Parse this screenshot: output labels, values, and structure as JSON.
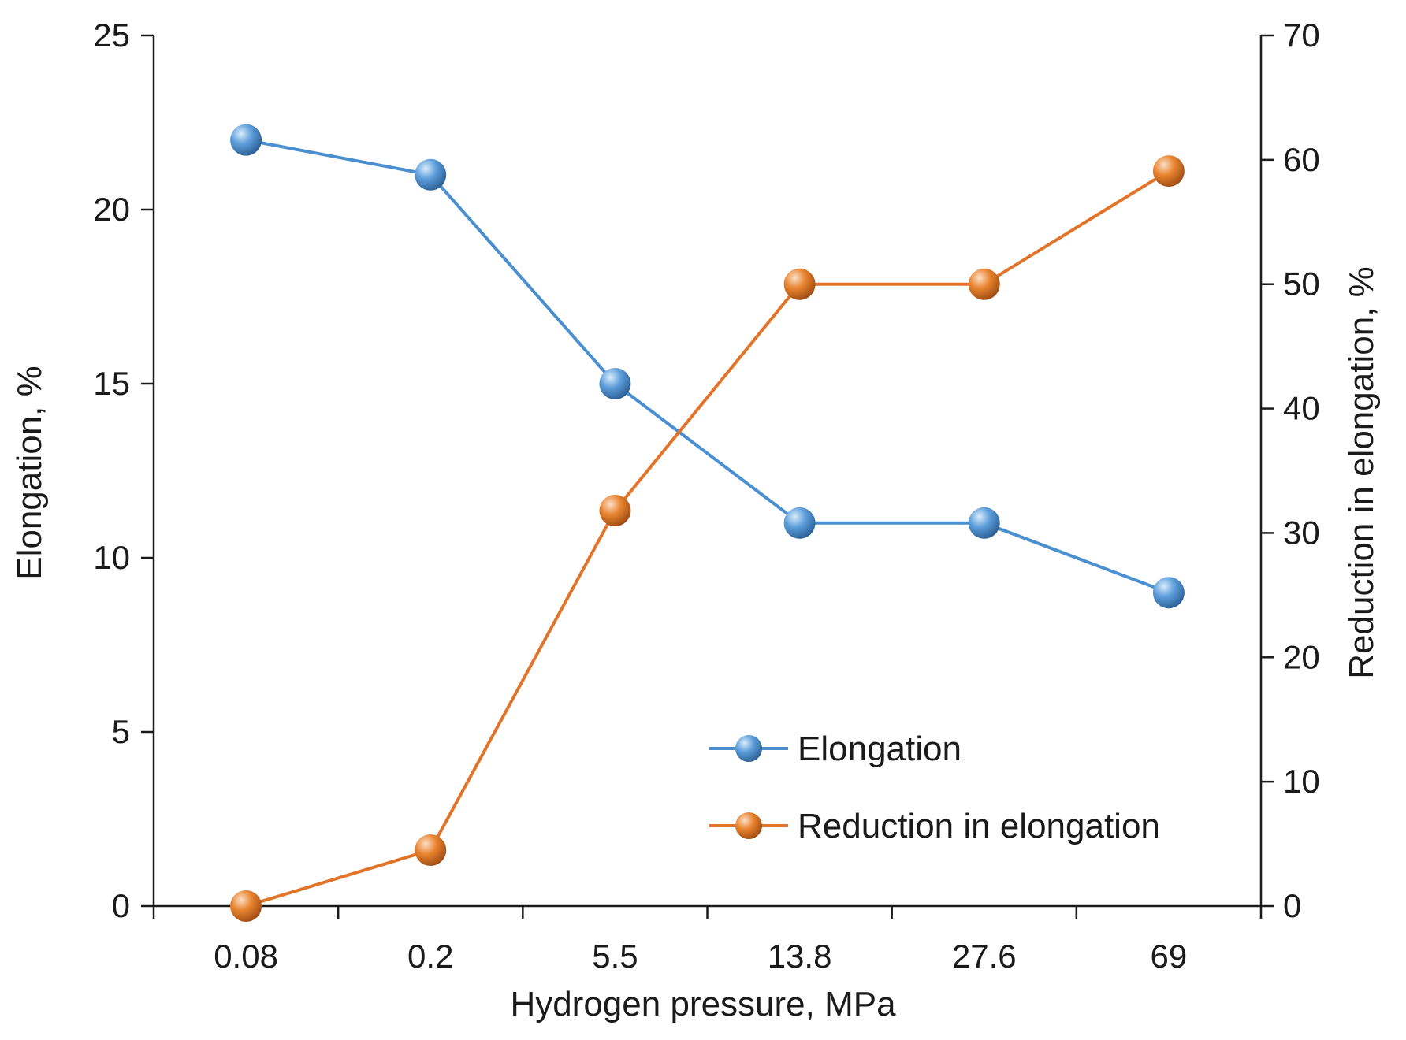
{
  "chart_data": {
    "type": "line",
    "title": "",
    "xlabel": "Hydrogen pressure, MPa",
    "ylabel": "Elongation, %",
    "y2label": "Reduction in elongation, %",
    "categories": [
      "0.08",
      "0.2",
      "5.5",
      "13.8",
      "27.6",
      "69"
    ],
    "ylim": [
      0,
      25
    ],
    "y2lim": [
      0,
      70
    ],
    "yticks": [
      0,
      5,
      10,
      15,
      20,
      25
    ],
    "y2ticks": [
      0,
      10,
      20,
      30,
      40,
      50,
      60,
      70
    ],
    "grid": false,
    "legend_position": "bottom-right inside plot",
    "series": [
      {
        "name": "Elongation",
        "axis": "left",
        "color": "#4a8fd0",
        "values": [
          22,
          21,
          15,
          11,
          11,
          9
        ]
      },
      {
        "name": "Reduction in elongation",
        "axis": "right",
        "color": "#e2742a",
        "values": [
          0,
          4.5,
          31.8,
          50,
          50,
          59.1
        ]
      }
    ]
  },
  "colors": {
    "axis": "#1a1a1a"
  }
}
